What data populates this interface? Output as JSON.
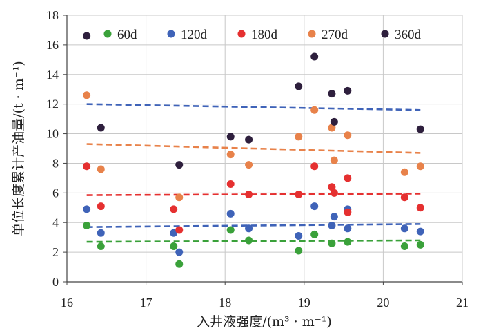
{
  "chart_data": {
    "type": "scatter",
    "title": "",
    "xlabel": "入井液强度/(m³ · m⁻¹)",
    "ylabel": "单位长度累计产油量/(t · m⁻¹)",
    "xlim": [
      16,
      21
    ],
    "ylim": [
      0,
      18
    ],
    "x_ticks": [
      "16",
      "17",
      "18",
      "19",
      "20",
      "21"
    ],
    "y_ticks": [
      "0",
      "2",
      "4",
      "6",
      "8",
      "10",
      "12",
      "14",
      "16",
      "18"
    ],
    "grid": true,
    "legend_position": "top",
    "series": [
      {
        "name": "60d",
        "color": "#3aa13a",
        "x": [
          16.25,
          16.43,
          17.35,
          17.42,
          18.07,
          18.3,
          18.93,
          19.13,
          19.35,
          19.55,
          20.27,
          20.47
        ],
        "y": [
          3.8,
          2.4,
          2.4,
          1.2,
          3.5,
          2.8,
          2.1,
          3.2,
          2.6,
          2.7,
          2.4,
          2.5
        ],
        "trend": [
          2.7,
          2.8
        ]
      },
      {
        "name": "120d",
        "color": "#3f63b8",
        "x": [
          16.25,
          16.43,
          17.35,
          17.42,
          18.07,
          18.3,
          18.93,
          19.13,
          19.35,
          19.38,
          19.55,
          19.55,
          20.27,
          20.47
        ],
        "y": [
          4.9,
          3.3,
          3.3,
          2.0,
          4.6,
          3.6,
          3.1,
          5.1,
          3.8,
          4.4,
          3.6,
          4.9,
          3.6,
          3.4
        ],
        "trend": [
          3.7,
          3.9
        ]
      },
      {
        "name": "180d",
        "color": "#e53030",
        "x": [
          16.25,
          16.43,
          17.35,
          17.42,
          18.07,
          18.3,
          18.93,
          19.13,
          19.35,
          19.38,
          19.55,
          19.55,
          20.27,
          20.47
        ],
        "y": [
          7.8,
          5.1,
          4.9,
          3.5,
          6.6,
          5.9,
          5.9,
          7.8,
          6.4,
          6.0,
          7.0,
          4.7,
          5.7,
          5.0
        ],
        "trend": [
          5.85,
          5.95
        ]
      },
      {
        "name": "270d",
        "color": "#e8824a",
        "x": [
          16.25,
          16.43,
          17.42,
          18.07,
          18.3,
          18.93,
          19.13,
          19.35,
          19.38,
          19.55,
          20.27,
          20.47
        ],
        "y": [
          12.6,
          7.6,
          5.7,
          8.6,
          7.9,
          9.8,
          11.6,
          10.4,
          8.2,
          9.9,
          7.4,
          7.8
        ],
        "trend": [
          9.3,
          8.7
        ]
      },
      {
        "name": "360d",
        "color": "#2e1f3d",
        "x": [
          16.25,
          16.43,
          17.42,
          18.07,
          18.3,
          18.93,
          19.13,
          19.35,
          19.38,
          19.55,
          20.47
        ],
        "y": [
          16.6,
          10.4,
          7.9,
          9.8,
          9.6,
          13.2,
          15.2,
          12.7,
          10.8,
          12.9,
          10.3
        ],
        "trend": [
          12.0,
          11.6
        ]
      }
    ],
    "trendline_x": [
      16.25,
      20.47
    ],
    "trendline_colors": [
      "#3aa13a",
      "#3f63b8",
      "#e53030",
      "#e8824a",
      "#3f63b8"
    ]
  }
}
